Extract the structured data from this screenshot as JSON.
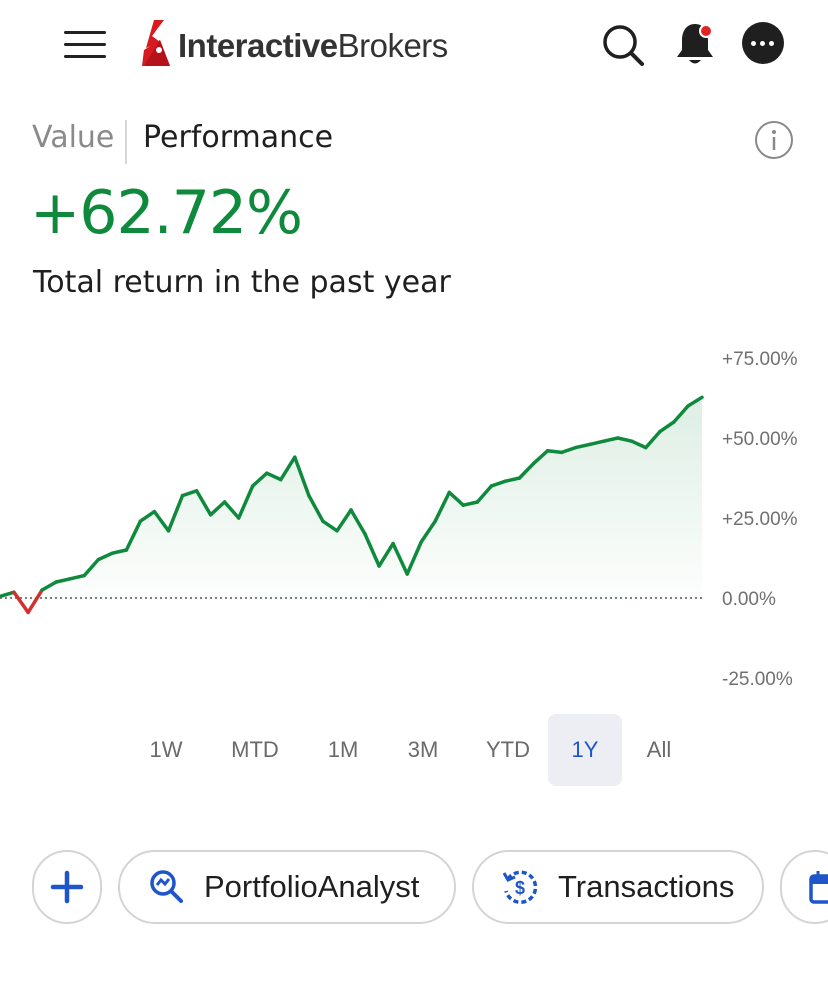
{
  "header": {
    "brand_bold": "Interactive",
    "brand_regular": "Brokers",
    "icons": [
      "menu-icon",
      "search-icon",
      "bell-icon",
      "more-icon"
    ],
    "notification_dot_color": "#e02424"
  },
  "tabs": {
    "value_label": "Value",
    "performance_label": "Performance",
    "active": "Performance"
  },
  "summary": {
    "total_return": "+62.72%",
    "caption": "Total return in the past year",
    "positive_color": "#0f8a3c",
    "negative_color": "#d32f2f"
  },
  "chart_data": {
    "type": "line",
    "title": "",
    "xlabel": "",
    "ylabel": "",
    "y_ticks": [
      "+75.00%",
      "+50.00%",
      "+25.00%",
      "0.00%",
      "-25.00%"
    ],
    "ylim": [
      -25,
      75
    ],
    "baseline": 0,
    "grid": false,
    "fill": "area under line",
    "series": [
      {
        "x": [
          0,
          2,
          4,
          6,
          8,
          10,
          12,
          14,
          16,
          18,
          20,
          22,
          24,
          26,
          28,
          30,
          32,
          34,
          36,
          38,
          40,
          42,
          44,
          46,
          48,
          50,
          52,
          54,
          56,
          58,
          60,
          62,
          64,
          66,
          68,
          70,
          72,
          74,
          76,
          78,
          80,
          82,
          84,
          86,
          88,
          90,
          92,
          94,
          96,
          98,
          100
        ],
        "values": [
          0.5,
          1.8,
          -4.5,
          2.5,
          5.0,
          6.0,
          7.0,
          12.0,
          14.0,
          15.0,
          24.0,
          27.0,
          21.0,
          32.0,
          33.5,
          26.0,
          30.0,
          25.0,
          35.0,
          39.0,
          37.0,
          44.0,
          32.0,
          24.0,
          21.0,
          27.5,
          20.0,
          10.0,
          17.0,
          7.5,
          17.5,
          24.0,
          33.0,
          29.0,
          30.0,
          35.0,
          36.5,
          37.5,
          42.0,
          46.0,
          45.5,
          47.0,
          48.0,
          49.0,
          50.0,
          49.0,
          47.0,
          52.0,
          55.0,
          60.0,
          62.72
        ]
      }
    ]
  },
  "ranges": {
    "items": [
      "1W",
      "MTD",
      "1M",
      "3M",
      "YTD",
      "1Y",
      "All"
    ],
    "active": "1Y"
  },
  "actions": {
    "add_icon": "plus-icon",
    "portfolio_label": "PortfolioAnalyst",
    "transactions_label": "Transactions",
    "accent_color": "#1e55c9"
  }
}
